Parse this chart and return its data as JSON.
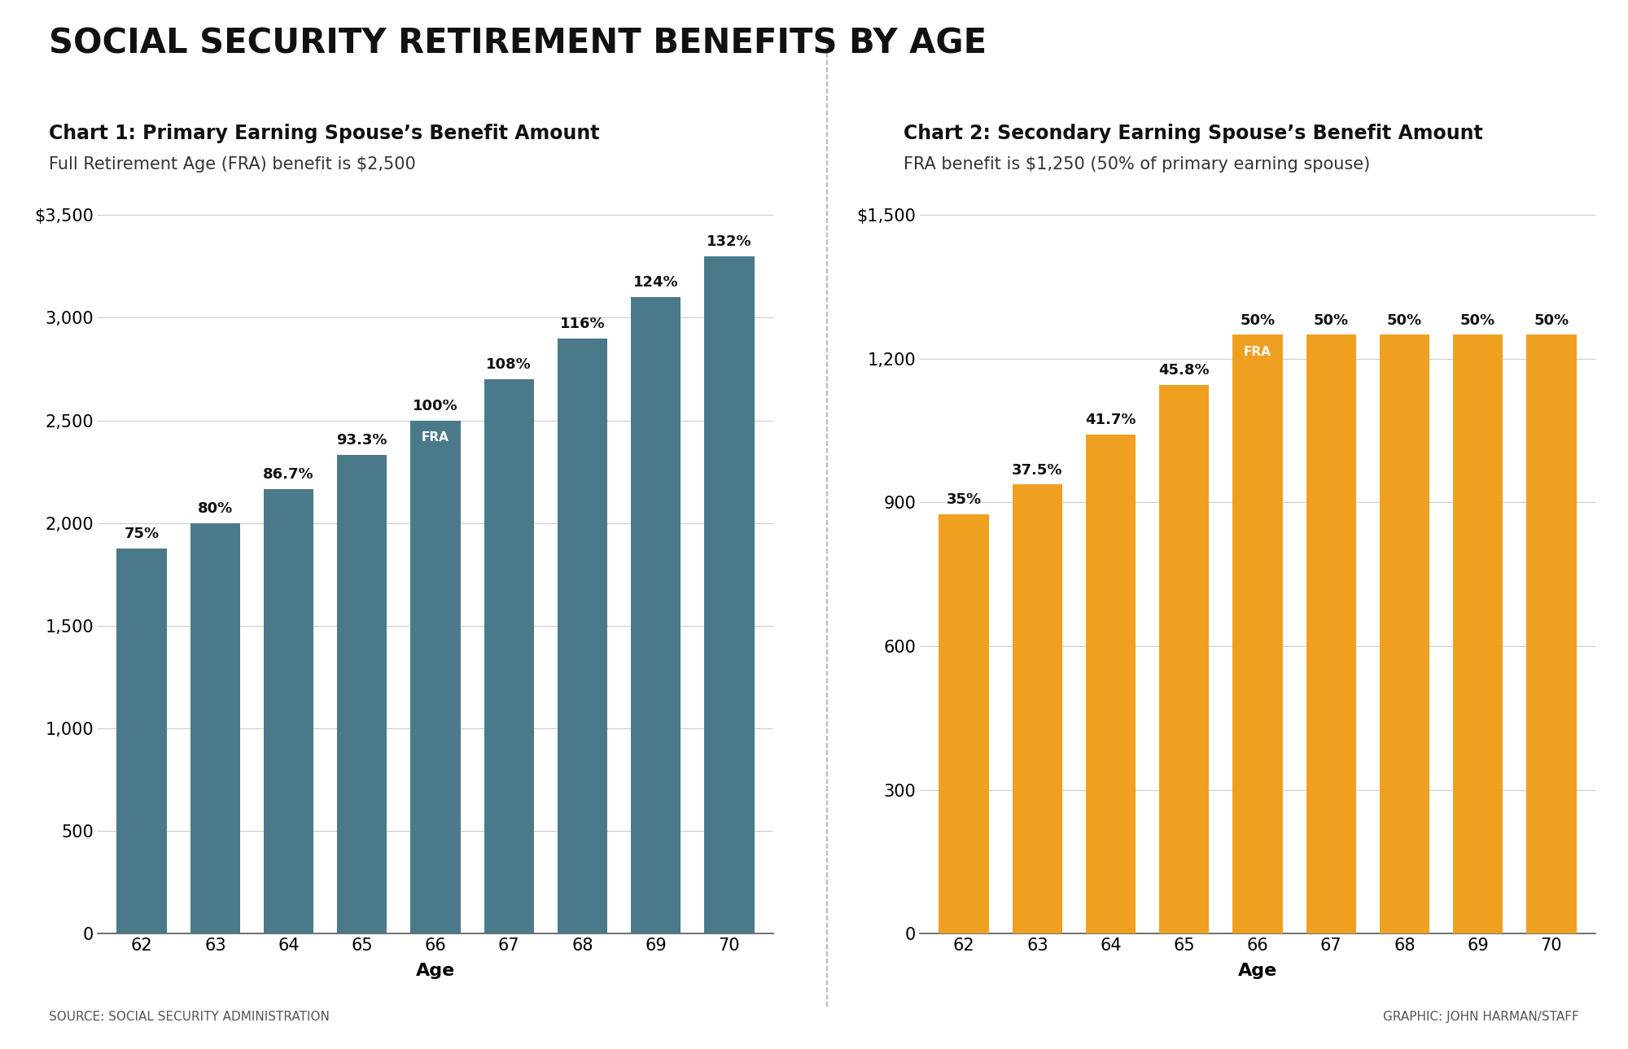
{
  "main_title": "SOCIAL SECURITY RETIREMENT BENEFITS BY AGE",
  "chart1_title": "Chart 1: Primary Earning Spouse’s Benefit Amount",
  "chart1_subtitle": "Full Retirement Age (FRA) benefit is $2,500",
  "chart2_title": "Chart 2: Secondary Earning Spouse’s Benefit Amount",
  "chart2_subtitle": "FRA benefit is $1,250 (50% of primary earning spouse)",
  "ages": [
    62,
    63,
    64,
    65,
    66,
    67,
    68,
    69,
    70
  ],
  "chart1_values": [
    1875,
    2000,
    2167,
    2333,
    2500,
    2700,
    2900,
    3100,
    3300
  ],
  "chart1_labels": [
    "75%",
    "80%",
    "86.7%",
    "93.3%",
    "100%",
    "108%",
    "116%",
    "124%",
    "132%"
  ],
  "chart1_fra_index": 4,
  "chart2_values": [
    875,
    937.5,
    1041.67,
    1145,
    1250,
    1250,
    1250,
    1250,
    1250
  ],
  "chart2_labels": [
    "35%",
    "37.5%",
    "41.7%",
    "45.8%",
    "50%",
    "50%",
    "50%",
    "50%",
    "50%"
  ],
  "chart2_fra_index": 4,
  "bar_color1": "#4a7a8a",
  "bar_color2": "#f0a020",
  "background_color": "#ffffff",
  "source_text": "SOURCE: SOCIAL SECURITY ADMINISTRATION",
  "credit_text": "GRAPHIC: JOHN HARMAN/STAFF",
  "chart1_ylim": [
    0,
    3500
  ],
  "chart1_yticks": [
    0,
    500,
    1000,
    1500,
    2000,
    2500,
    3000,
    3500
  ],
  "chart2_ylim": [
    0,
    1500
  ],
  "chart2_yticks": [
    0,
    300,
    600,
    900,
    1200,
    1500
  ]
}
